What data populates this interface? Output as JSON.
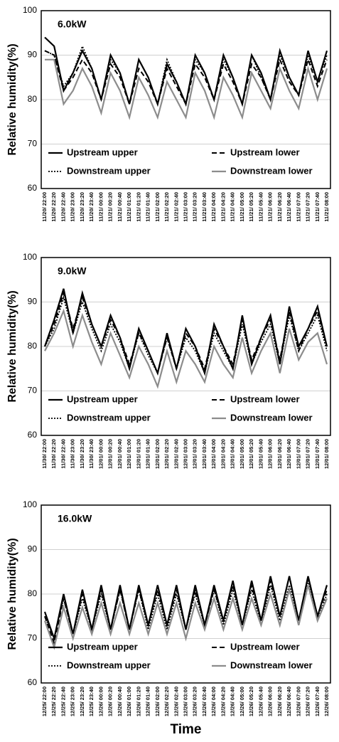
{
  "chart_data": [
    {
      "type": "line",
      "annotation": "6.0kW",
      "ylabel": "Relative humidity(%)",
      "ylim": [
        60,
        100
      ],
      "yticks": [
        60,
        70,
        80,
        90,
        100
      ],
      "grid": true,
      "legend": "lower",
      "categories": [
        "11/20/ 22:00",
        "11/20/ 22:20",
        "11/20/ 22:40",
        "11/20/ 23:00",
        "11/20/ 23:20",
        "11/20/ 23:40",
        "11/21/ 00:00",
        "11/21/ 00:20",
        "11/21/ 00:40",
        "11/21/ 01:00",
        "11/21/ 01:20",
        "11/21/ 01:40",
        "11/21/ 02:00",
        "11/21/ 02:20",
        "11/21/ 02:40",
        "11/21/ 03:00",
        "11/21/ 03:20",
        "11/21/ 03:40",
        "11/21/ 04:00",
        "11/21/ 04:20",
        "11/21/ 04:40",
        "11/21/ 05:00",
        "11/21/ 05:20",
        "11/21/ 05:40",
        "11/21/ 06:00",
        "11/21/ 06:20",
        "11/21/ 06:40",
        "11/21/ 07:00",
        "11/21/ 07:20",
        "11/21/ 07:40",
        "11/21/ 08:00"
      ],
      "series": [
        {
          "name": "Upstream upper",
          "color": "#000000",
          "style": "solid",
          "values": [
            94,
            92,
            82,
            86,
            91,
            87,
            80,
            90,
            86,
            79,
            89,
            85,
            79,
            88,
            84,
            79,
            90,
            86,
            80,
            90,
            85,
            79,
            90,
            86,
            80,
            91,
            85,
            81,
            91,
            84,
            91
          ]
        },
        {
          "name": "Upstream lower",
          "color": "#000000",
          "style": "dashed",
          "values": [
            91,
            90,
            82,
            85,
            89,
            86,
            80,
            88,
            85,
            79,
            87,
            84,
            79,
            87,
            83,
            79,
            88,
            85,
            80,
            88,
            84,
            79,
            88,
            85,
            80,
            89,
            84,
            81,
            89,
            83,
            89
          ]
        },
        {
          "name": "Downstream upper",
          "color": "#000000",
          "style": "dotted",
          "values": [
            91,
            90,
            83,
            86,
            92,
            87,
            80,
            89,
            86,
            79,
            89,
            85,
            79,
            89,
            84,
            79,
            89,
            86,
            80,
            89,
            85,
            79,
            90,
            85,
            80,
            90,
            85,
            81,
            90,
            84,
            90
          ]
        },
        {
          "name": "Downstream lower",
          "color": "#8c8c8c",
          "style": "solid",
          "values": [
            89,
            89,
            79,
            82,
            87,
            83,
            77,
            86,
            82,
            76,
            85,
            81,
            76,
            84,
            80,
            76,
            86,
            82,
            76,
            85,
            81,
            76,
            86,
            82,
            78,
            87,
            82,
            78,
            87,
            80,
            87
          ]
        }
      ]
    },
    {
      "type": "line",
      "annotation": "9.0kW",
      "ylabel": "Relative humidity(%)",
      "ylim": [
        60,
        100
      ],
      "yticks": [
        60,
        70,
        80,
        90,
        100
      ],
      "grid": true,
      "legend": "lower",
      "categories": [
        "11/30/ 22:00",
        "11/30/ 22:20",
        "11/30/ 22:40",
        "11/30/ 23:00",
        "11/30/ 23:20",
        "11/30/ 23:40",
        "12/01/ 00:00",
        "12/01/ 00:20",
        "12/01/ 00:40",
        "12/01/ 01:00",
        "12/01/ 01:20",
        "12/01/ 01:40",
        "12/01/ 02:00",
        "12/01/ 02:20",
        "12/01/ 02:40",
        "12/01/ 03:00",
        "12/01/ 03:20",
        "12/01/ 03:40",
        "12/01/ 04:00",
        "12/01/ 04:20",
        "12/01/ 04:40",
        "12/01/ 05:00",
        "12/01/ 05:20",
        "12/01/ 05:40",
        "12/01/ 06:00",
        "12/01/ 06:20",
        "12/01/ 06:40",
        "12/01/ 07:00",
        "12/01/ 07:20",
        "12/01/ 07:40",
        "12/01/ 08:00"
      ],
      "series": [
        {
          "name": "Upstream upper",
          "color": "#000000",
          "style": "solid",
          "values": [
            80,
            86,
            93,
            83,
            92,
            85,
            80,
            87,
            82,
            75,
            84,
            79,
            74,
            83,
            75,
            84,
            80,
            74,
            85,
            80,
            75,
            87,
            76,
            82,
            87,
            76,
            89,
            80,
            84,
            89,
            80
          ]
        },
        {
          "name": "Upstream lower",
          "color": "#000000",
          "style": "dashed",
          "values": [
            80,
            85,
            92,
            84,
            91,
            85,
            80,
            86,
            82,
            76,
            83,
            79,
            74,
            82,
            75,
            83,
            80,
            75,
            84,
            80,
            76,
            86,
            77,
            82,
            86,
            77,
            88,
            79,
            84,
            88,
            80
          ]
        },
        {
          "name": "Downstream upper",
          "color": "#000000",
          "style": "dotted",
          "values": [
            80,
            84,
            91,
            83,
            90,
            84,
            79,
            85,
            81,
            75,
            83,
            78,
            74,
            82,
            75,
            82,
            79,
            74,
            83,
            79,
            75,
            85,
            76,
            81,
            85,
            76,
            87,
            79,
            83,
            87,
            79
          ]
        },
        {
          "name": "Downstream lower",
          "color": "#8c8c8c",
          "style": "solid",
          "values": [
            79,
            83,
            88,
            80,
            87,
            81,
            76,
            83,
            78,
            73,
            80,
            76,
            71,
            79,
            72,
            79,
            76,
            72,
            80,
            76,
            73,
            82,
            74,
            79,
            83,
            74,
            84,
            77,
            81,
            83,
            76
          ]
        }
      ]
    },
    {
      "type": "line",
      "annotation": "16.0kW",
      "ylabel": "Relative humidity(%)",
      "xlabel": "Time",
      "ylim": [
        60,
        100
      ],
      "yticks": [
        60,
        70,
        80,
        90,
        100
      ],
      "grid": true,
      "legend": "lower",
      "categories": [
        "12/25/ 22:00",
        "12/25/ 22:20",
        "12/25/ 22:40",
        "12/25/ 23:00",
        "12/25/ 23:20",
        "12/25/ 23:40",
        "12/26/ 00:00",
        "12/26/ 00:20",
        "12/26/ 00:40",
        "12/26/ 01:00",
        "12/26/ 01:20",
        "12/26/ 01:40",
        "12/26/ 02:00",
        "12/26/ 02:20",
        "12/26/ 02:40",
        "12/26/ 03:00",
        "12/26/ 03:20",
        "12/26/ 03:40",
        "12/26/ 04:00",
        "12/26/ 04:20",
        "12/26/ 04:40",
        "12/26/ 05:00",
        "12/26/ 05:20",
        "12/26/ 05:40",
        "12/26/ 06:00",
        "12/26/ 06:20",
        "12/26/ 06:40",
        "12/26/ 07:00",
        "12/26/ 07:20",
        "12/26/ 07:40",
        "12/26/ 08:00"
      ],
      "series": [
        {
          "name": "Upstream upper",
          "color": "#000000",
          "style": "solid",
          "values": [
            76,
            70,
            80,
            71,
            81,
            72,
            82,
            72,
            82,
            72,
            82,
            73,
            82,
            73,
            82,
            72,
            82,
            73,
            82,
            74,
            83,
            73,
            83,
            74,
            84,
            75,
            84,
            74,
            84,
            75,
            82
          ]
        },
        {
          "name": "Upstream lower",
          "color": "#000000",
          "style": "dashed",
          "values": [
            75,
            69,
            79,
            71,
            80,
            72,
            81,
            72,
            81,
            72,
            81,
            73,
            81,
            73,
            81,
            72,
            81,
            73,
            81,
            74,
            82,
            73,
            82,
            74,
            83,
            75,
            84,
            74,
            84,
            75,
            81
          ]
        },
        {
          "name": "Downstream upper",
          "color": "#000000",
          "style": "dotted",
          "values": [
            75,
            70,
            79,
            71,
            79,
            72,
            80,
            72,
            81,
            72,
            81,
            72,
            80,
            72,
            80,
            72,
            80,
            73,
            81,
            73,
            81,
            73,
            81,
            73,
            82,
            74,
            82,
            74,
            83,
            74,
            80
          ]
        },
        {
          "name": "Downstream lower",
          "color": "#8c8c8c",
          "style": "solid",
          "values": [
            74,
            68,
            77,
            70,
            77,
            71,
            78,
            71,
            78,
            71,
            78,
            71,
            78,
            71,
            78,
            70,
            78,
            72,
            79,
            72,
            79,
            72,
            79,
            73,
            80,
            73,
            81,
            73,
            82,
            74,
            79
          ]
        }
      ]
    }
  ]
}
